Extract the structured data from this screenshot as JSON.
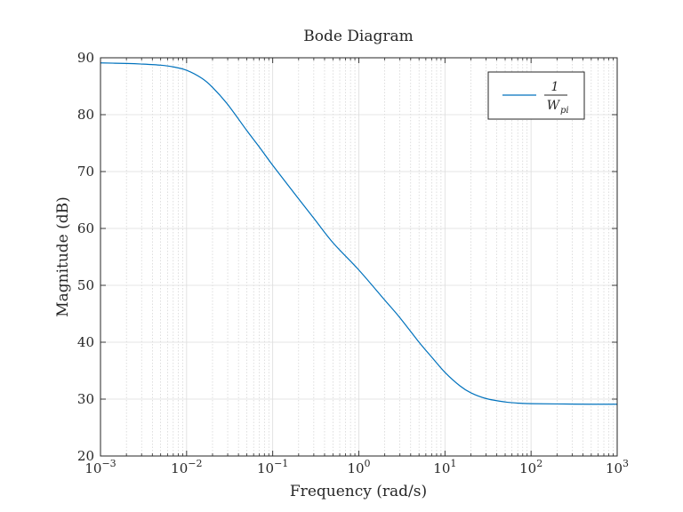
{
  "chart_data": {
    "type": "line",
    "title": "Bode Diagram",
    "xlabel": "Frequency  (rad/s)",
    "ylabel": "Magnitude (dB)",
    "xscale": "log",
    "xlim": [
      0.001,
      1000
    ],
    "ylim": [
      20,
      90
    ],
    "grid": true,
    "legend_position": "top-right",
    "x_tick_labels": [
      {
        "base": "10",
        "exp": "−3"
      },
      {
        "base": "10",
        "exp": "−2"
      },
      {
        "base": "10",
        "exp": "−1"
      },
      {
        "base": "10",
        "exp": "0"
      },
      {
        "base": "10",
        "exp": "1"
      },
      {
        "base": "10",
        "exp": "2"
      },
      {
        "base": "10",
        "exp": "3"
      }
    ],
    "y_ticks": [
      20,
      30,
      40,
      50,
      60,
      70,
      80,
      90
    ],
    "series": [
      {
        "legend": {
          "numerator": "1",
          "denominator": "W",
          "denominator_sub": "pi"
        },
        "color": "#0072BD",
        "x": [
          0.001,
          0.002,
          0.003,
          0.005,
          0.007,
          0.01,
          0.015,
          0.02,
          0.03,
          0.05,
          0.07,
          0.1,
          0.2,
          0.3,
          0.5,
          1,
          2,
          3,
          5,
          7,
          10,
          15,
          20,
          30,
          50,
          70,
          100,
          200,
          500,
          1000
        ],
        "y": [
          89.1,
          89.0,
          88.9,
          88.7,
          88.4,
          87.8,
          86.4,
          84.8,
          81.8,
          77.2,
          74.3,
          71.1,
          65.2,
          61.8,
          57.5,
          52.7,
          47.4,
          44.3,
          40.0,
          37.4,
          34.7,
          32.3,
          31.1,
          30.1,
          29.5,
          29.3,
          29.2,
          29.15,
          29.1,
          29.1
        ]
      }
    ]
  }
}
